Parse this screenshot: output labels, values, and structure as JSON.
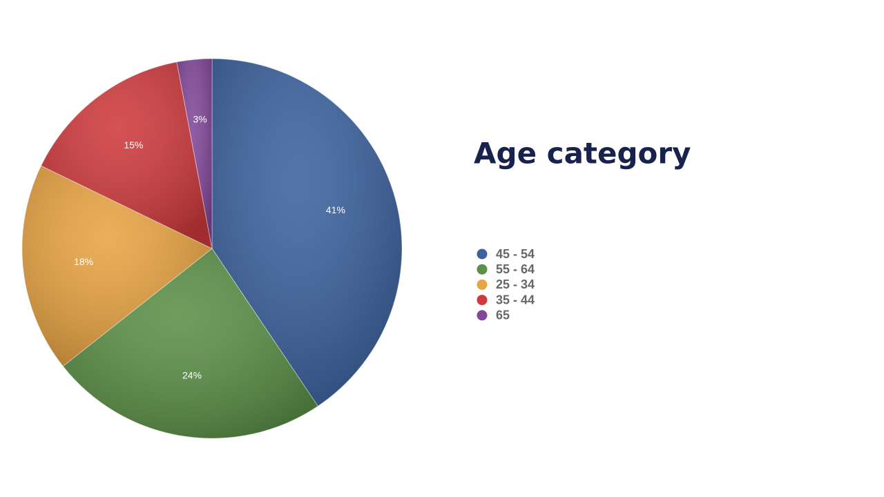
{
  "chart_data": {
    "type": "pie",
    "title": "Age category",
    "categories": [
      "45 - 54",
      "55 - 64",
      "25 - 34",
      "35 - 44",
      "65"
    ],
    "values": [
      41,
      24,
      18,
      15,
      3
    ],
    "value_labels": [
      "41%",
      "24%",
      "18%",
      "15%",
      "3%"
    ],
    "colors": [
      "#3b629e",
      "#5b9048",
      "#e9a443",
      "#cf3a3d",
      "#82479a"
    ],
    "legend": "right"
  }
}
